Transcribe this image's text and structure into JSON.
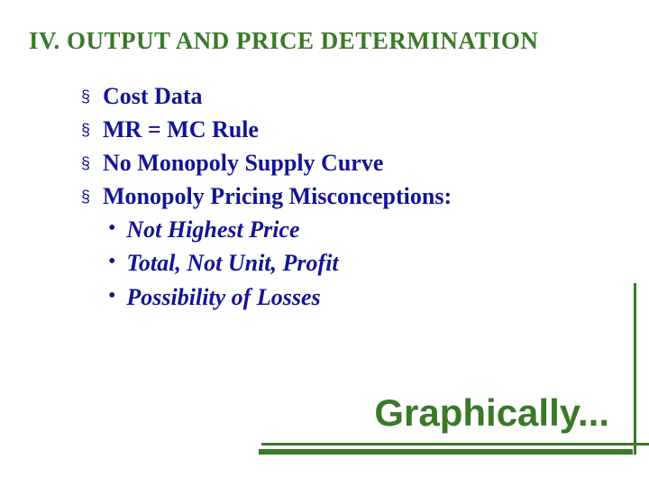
{
  "title": "IV. OUTPUT AND PRICE DETERMINATION",
  "colors": {
    "heading_green": "#3a7928",
    "body_blue": "#131496",
    "background": "#ffffff"
  },
  "bullets": [
    {
      "marker": "§",
      "text": "Cost Data"
    },
    {
      "marker": "§",
      "text": "MR = MC Rule"
    },
    {
      "marker": "§",
      "text": "No Monopoly Supply Curve"
    },
    {
      "marker": "§",
      "text": "Monopoly Pricing Misconceptions:"
    }
  ],
  "sub_bullets": [
    {
      "marker": "•",
      "text": "Not Highest Price"
    },
    {
      "marker": "•",
      "text": "Total, Not Unit, Profit"
    },
    {
      "marker": "•",
      "text": "Possibility of Losses"
    }
  ],
  "footer_text": "Graphically...",
  "typography": {
    "title_fontsize": 27,
    "bullet_fontsize": 26,
    "footer_fontsize": 42,
    "title_font": "Times New Roman",
    "bullet_font": "Times New Roman",
    "footer_font": "Comic Sans MS"
  }
}
